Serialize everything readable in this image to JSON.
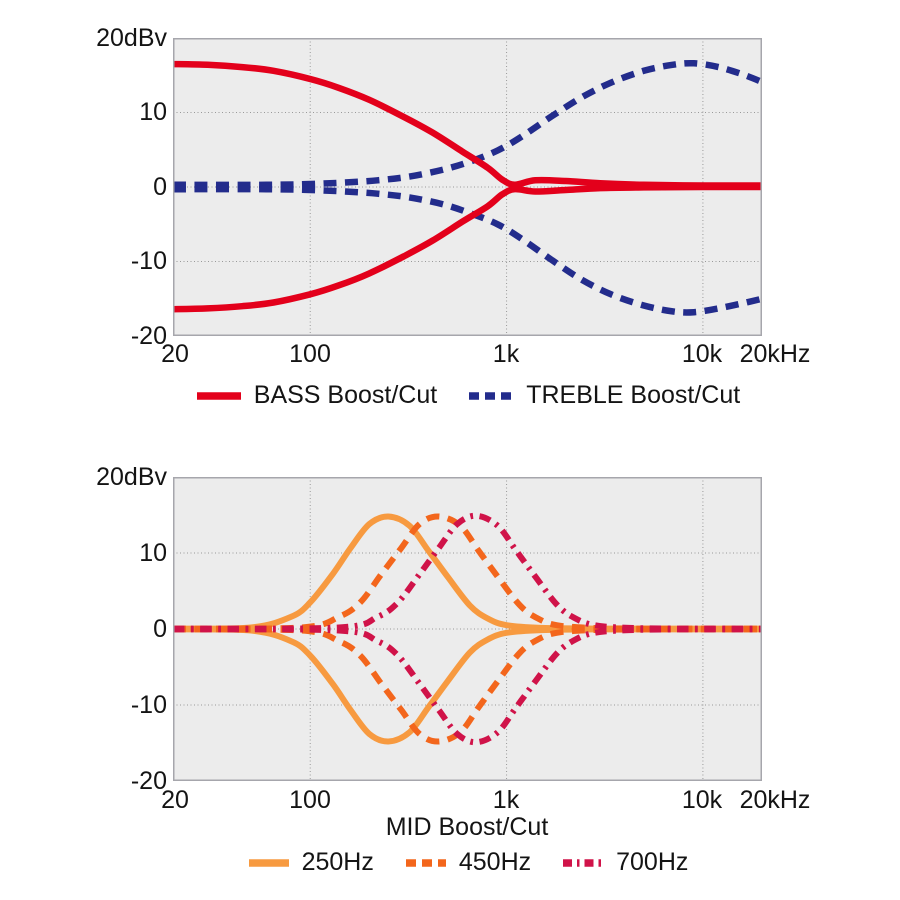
{
  "page": {
    "background": "#ffffff",
    "text_color": "#141414"
  },
  "chart_data": [
    {
      "type": "line",
      "name": "tone-boost-cut",
      "plot_bg": "#ececec",
      "border_color": "#a6a6ac",
      "grid_color": "#999999",
      "y_axis": {
        "top_label": "20dBv",
        "ticks": [
          "10",
          "0",
          "-10",
          "-20"
        ],
        "tick_values": [
          10,
          0,
          -10,
          -20
        ],
        "grid_values": [
          10,
          0,
          -10
        ],
        "range": [
          -20,
          20
        ]
      },
      "x_axis": {
        "label": "",
        "ticks": [
          "20",
          "100",
          "1k",
          "10k",
          "20kHz"
        ],
        "tick_values": [
          20,
          100,
          1000,
          10000,
          20000
        ],
        "grid_values": [
          100,
          1000,
          10000
        ],
        "range": [
          20,
          20000
        ],
        "scale": "log"
      },
      "series": [
        {
          "name": "TREBLE Boost/Cut",
          "color": "#232c8c",
          "dash": "dashed",
          "width": 6.5,
          "boost": [
            [
              20,
              0.3
            ],
            [
              60,
              0.3
            ],
            [
              100,
              0.4
            ],
            [
              150,
              0.6
            ],
            [
              220,
              0.9
            ],
            [
              320,
              1.4
            ],
            [
              470,
              2.3
            ],
            [
              650,
              3.4
            ],
            [
              900,
              4.9
            ],
            [
              1200,
              6.8
            ],
            [
              1700,
              9.5
            ],
            [
              2400,
              12.0
            ],
            [
              3400,
              14.0
            ],
            [
              5000,
              15.6
            ],
            [
              7000,
              16.4
            ],
            [
              9000,
              16.6
            ],
            [
              12000,
              16.1
            ],
            [
              16000,
              15.1
            ],
            [
              20000,
              14.1
            ]
          ],
          "cut": [
            [
              20,
              -0.3
            ],
            [
              60,
              -0.3
            ],
            [
              100,
              -0.4
            ],
            [
              150,
              -0.6
            ],
            [
              220,
              -0.9
            ],
            [
              320,
              -1.4
            ],
            [
              470,
              -2.3
            ],
            [
              650,
              -3.5
            ],
            [
              900,
              -5.0
            ],
            [
              1200,
              -7.0
            ],
            [
              1700,
              -9.8
            ],
            [
              2400,
              -12.4
            ],
            [
              3400,
              -14.4
            ],
            [
              5000,
              -15.9
            ],
            [
              7000,
              -16.7
            ],
            [
              9000,
              -16.8
            ],
            [
              12000,
              -16.3
            ],
            [
              16000,
              -15.6
            ],
            [
              20000,
              -15.0
            ]
          ]
        },
        {
          "name": "BASS Boost/Cut",
          "color": "#e3001b",
          "dash": "solid",
          "width": 6.5,
          "boost": [
            [
              20,
              16.5
            ],
            [
              30,
              16.4
            ],
            [
              45,
              16.1
            ],
            [
              65,
              15.6
            ],
            [
              100,
              14.5
            ],
            [
              140,
              13.3
            ],
            [
              200,
              11.7
            ],
            [
              300,
              9.4
            ],
            [
              420,
              7.3
            ],
            [
              600,
              4.7
            ],
            [
              800,
              2.6
            ],
            [
              950,
              1.0
            ],
            [
              1100,
              0.3
            ],
            [
              1400,
              0.9
            ],
            [
              2000,
              0.8
            ],
            [
              3000,
              0.5
            ],
            [
              5000,
              0.3
            ],
            [
              10000,
              0.2
            ],
            [
              20000,
              0.2
            ]
          ],
          "cut": [
            [
              20,
              -16.4
            ],
            [
              30,
              -16.3
            ],
            [
              45,
              -16.0
            ],
            [
              65,
              -15.5
            ],
            [
              100,
              -14.4
            ],
            [
              140,
              -13.2
            ],
            [
              200,
              -11.6
            ],
            [
              300,
              -9.3
            ],
            [
              420,
              -7.2
            ],
            [
              600,
              -4.6
            ],
            [
              800,
              -2.6
            ],
            [
              950,
              -1.0
            ],
            [
              1100,
              -0.3
            ],
            [
              1400,
              -0.6
            ],
            [
              2000,
              -0.4
            ],
            [
              3000,
              -0.15
            ],
            [
              5000,
              -0.05
            ],
            [
              10000,
              0
            ],
            [
              20000,
              0
            ]
          ]
        }
      ],
      "legend": [
        {
          "label": "BASS Boost/Cut",
          "color": "#e3001b",
          "dash": "solid"
        },
        {
          "label": "TREBLE Boost/Cut",
          "color": "#232c8c",
          "dash": "dashed"
        }
      ]
    },
    {
      "type": "line",
      "name": "mid-boost-cut",
      "plot_bg": "#ececec",
      "border_color": "#a6a6ac",
      "grid_color": "#999999",
      "y_axis": {
        "top_label": "20dBv",
        "ticks": [
          "10",
          "0",
          "-10",
          "-20"
        ],
        "tick_values": [
          10,
          0,
          -10,
          -20
        ],
        "grid_values": [
          10,
          0,
          -10
        ],
        "range": [
          -20,
          20
        ]
      },
      "x_axis": {
        "label": "MID Boost/Cut",
        "ticks": [
          "20",
          "100",
          "1k",
          "10k",
          "20kHz"
        ],
        "tick_values": [
          20,
          100,
          1000,
          10000,
          20000
        ],
        "grid_values": [
          100,
          1000,
          10000
        ],
        "range": [
          20,
          20000
        ],
        "scale": "log"
      },
      "series": [
        {
          "name": "250Hz",
          "color": "#f79a40",
          "dash": "solid",
          "width": 6,
          "boost": [
            [
              20,
              0.05
            ],
            [
              50,
              0.2
            ],
            [
              80,
              1.6
            ],
            [
              100,
              3.5
            ],
            [
              130,
              7.2
            ],
            [
              160,
              10.6
            ],
            [
              200,
              13.8
            ],
            [
              250,
              14.8
            ],
            [
              320,
              13.6
            ],
            [
              400,
              10.3
            ],
            [
              500,
              6.9
            ],
            [
              650,
              3.1
            ],
            [
              800,
              1.4
            ],
            [
              1000,
              0.5
            ],
            [
              1500,
              0.15
            ],
            [
              3000,
              0.05
            ],
            [
              8000,
              0.05
            ],
            [
              20000,
              0.05
            ]
          ],
          "cut": [
            [
              20,
              -0.05
            ],
            [
              50,
              -0.2
            ],
            [
              80,
              -1.6
            ],
            [
              100,
              -3.5
            ],
            [
              130,
              -7.2
            ],
            [
              160,
              -10.6
            ],
            [
              200,
              -13.8
            ],
            [
              250,
              -14.8
            ],
            [
              320,
              -13.6
            ],
            [
              400,
              -10.3
            ],
            [
              500,
              -6.9
            ],
            [
              650,
              -3.1
            ],
            [
              800,
              -1.4
            ],
            [
              1000,
              -0.5
            ],
            [
              1500,
              -0.15
            ],
            [
              3000,
              -0.05
            ],
            [
              8000,
              -0.05
            ],
            [
              20000,
              -0.05
            ]
          ]
        },
        {
          "name": "450Hz",
          "color": "#f3661c",
          "dash": "dashed",
          "width": 6,
          "boost": [
            [
              20,
              0.05
            ],
            [
              90,
              0.2
            ],
            [
              140,
              1.6
            ],
            [
              180,
              3.5
            ],
            [
              230,
              7.2
            ],
            [
              290,
              10.6
            ],
            [
              360,
              13.8
            ],
            [
              450,
              14.8
            ],
            [
              580,
              13.6
            ],
            [
              720,
              10.3
            ],
            [
              900,
              6.9
            ],
            [
              1170,
              3.1
            ],
            [
              1440,
              1.4
            ],
            [
              1800,
              0.5
            ],
            [
              2700,
              0.15
            ],
            [
              5000,
              0.05
            ],
            [
              20000,
              0.05
            ]
          ],
          "cut": [
            [
              20,
              -0.05
            ],
            [
              90,
              -0.2
            ],
            [
              140,
              -1.6
            ],
            [
              180,
              -3.5
            ],
            [
              230,
              -7.2
            ],
            [
              290,
              -10.6
            ],
            [
              360,
              -13.8
            ],
            [
              450,
              -14.8
            ],
            [
              580,
              -13.6
            ],
            [
              720,
              -10.3
            ],
            [
              900,
              -6.9
            ],
            [
              1170,
              -3.1
            ],
            [
              1440,
              -1.4
            ],
            [
              1800,
              -0.5
            ],
            [
              2700,
              -0.15
            ],
            [
              5000,
              -0.05
            ],
            [
              20000,
              -0.05
            ]
          ],
          "note": ""
        },
        {
          "name": "700Hz",
          "color": "#d01349",
          "dash": "dashdot",
          "width": 6,
          "boost": [
            [
              20,
              0.05
            ],
            [
              140,
              0.2
            ],
            [
              220,
              1.6
            ],
            [
              280,
              3.5
            ],
            [
              360,
              7.2
            ],
            [
              450,
              10.6
            ],
            [
              560,
              13.8
            ],
            [
              700,
              14.9
            ],
            [
              900,
              13.6
            ],
            [
              1120,
              10.3
            ],
            [
              1400,
              6.9
            ],
            [
              1820,
              3.1
            ],
            [
              2240,
              1.4
            ],
            [
              2800,
              0.5
            ],
            [
              4200,
              0.15
            ],
            [
              8000,
              0.05
            ],
            [
              20000,
              0.05
            ]
          ],
          "cut": [
            [
              20,
              -0.05
            ],
            [
              140,
              -0.2
            ],
            [
              220,
              -1.6
            ],
            [
              280,
              -3.5
            ],
            [
              360,
              -7.2
            ],
            [
              450,
              -10.6
            ],
            [
              560,
              -13.8
            ],
            [
              700,
              -14.9
            ],
            [
              900,
              -13.6
            ],
            [
              1120,
              -10.3
            ],
            [
              1400,
              -6.9
            ],
            [
              1820,
              -3.1
            ],
            [
              2240,
              -1.4
            ],
            [
              2800,
              -0.5
            ],
            [
              4200,
              -0.15
            ],
            [
              8000,
              -0.05
            ],
            [
              20000,
              -0.05
            ]
          ]
        }
      ],
      "legend": [
        {
          "label": "250Hz",
          "color": "#f79a40",
          "dash": "solid"
        },
        {
          "label": "450Hz",
          "color": "#f3661c",
          "dash": "dashed"
        },
        {
          "label": "700Hz",
          "color": "#d01349",
          "dash": "dashdot"
        }
      ]
    }
  ]
}
